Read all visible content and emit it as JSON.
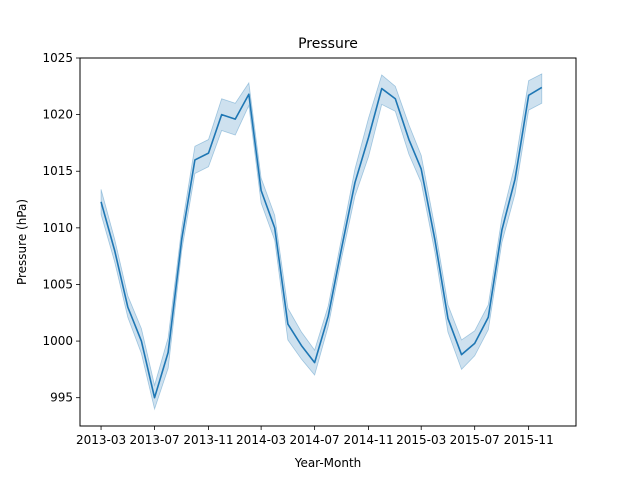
{
  "chart_data": {
    "type": "line",
    "title": "Pressure",
    "xlabel": "Year-Month",
    "ylabel": "Pressure (hPa)",
    "ylim": [
      992.5,
      1025
    ],
    "xlim": [
      "2013-01-12",
      "2016-02-17"
    ],
    "grid": false,
    "legend": "none",
    "colors": {
      "line": "#1f77b4",
      "band": "#1f77b4"
    },
    "x_ticks": [
      "2013-03",
      "2013-07",
      "2013-11",
      "2014-03",
      "2014-07",
      "2014-11",
      "2015-03",
      "2015-07",
      "2015-11"
    ],
    "y_ticks": [
      995,
      1000,
      1005,
      1010,
      1015,
      1020,
      1025
    ],
    "series": [
      {
        "x": [
          "2013-03",
          "2013-04",
          "2013-05",
          "2013-06",
          "2013-07",
          "2013-08",
          "2013-09",
          "2013-10",
          "2013-11",
          "2013-12",
          "2014-01",
          "2014-02",
          "2014-03",
          "2014-04",
          "2014-05",
          "2014-06",
          "2014-07",
          "2014-08",
          "2014-09",
          "2014-10",
          "2014-11",
          "2014-12",
          "2015-01",
          "2015-02",
          "2015-03",
          "2015-04",
          "2015-05",
          "2015-06",
          "2015-07",
          "2015-08",
          "2015-09",
          "2015-10",
          "2015-11",
          "2015-12"
        ],
        "values": [
          1012.3,
          1008.0,
          1003.0,
          1000.0,
          995.0,
          999.0,
          1009.0,
          1016.0,
          1016.6,
          1020.0,
          1019.6,
          1021.8,
          1013.3,
          1010.0,
          1001.5,
          999.6,
          998.1,
          1002.2,
          1008.3,
          1014.0,
          1018.0,
          1022.3,
          1021.4,
          1017.8,
          1015.2,
          1009.0,
          1002.0,
          998.8,
          999.8,
          1002.1,
          1009.8,
          1014.3,
          1021.7,
          1022.4
        ],
        "lower": [
          1011.2,
          1007.0,
          1002.1,
          998.9,
          994.0,
          997.6,
          1008.0,
          1014.8,
          1015.4,
          1018.6,
          1018.2,
          1020.8,
          1012.2,
          1008.9,
          1000.1,
          998.4,
          997.0,
          1001.3,
          1007.4,
          1012.8,
          1016.3,
          1020.9,
          1020.3,
          1016.5,
          1014.0,
          1007.9,
          1000.8,
          997.5,
          998.7,
          1001.0,
          1008.7,
          1013.0,
          1020.4,
          1021.0
        ],
        "upper": [
          1013.4,
          1009.0,
          1004.0,
          1001.1,
          996.1,
          1000.3,
          1010.0,
          1017.2,
          1017.8,
          1021.4,
          1021.0,
          1022.8,
          1014.4,
          1011.1,
          1002.9,
          1000.8,
          999.2,
          1003.1,
          1009.2,
          1015.2,
          1019.7,
          1023.5,
          1022.5,
          1019.1,
          1016.4,
          1010.1,
          1003.2,
          1000.1,
          1000.9,
          1003.2,
          1010.9,
          1015.6,
          1023.0,
          1023.6
        ]
      }
    ]
  }
}
